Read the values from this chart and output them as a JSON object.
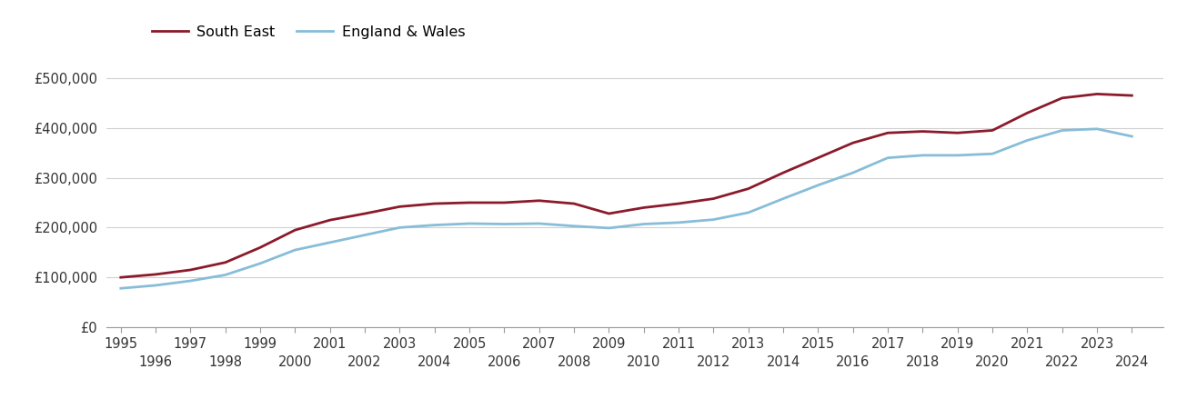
{
  "south_east": {
    "years": [
      1995,
      1996,
      1997,
      1998,
      1999,
      2000,
      2001,
      2002,
      2003,
      2004,
      2005,
      2006,
      2007,
      2008,
      2009,
      2010,
      2011,
      2012,
      2013,
      2014,
      2015,
      2016,
      2017,
      2018,
      2019,
      2020,
      2021,
      2022,
      2023,
      2024
    ],
    "values": [
      100000,
      106000,
      115000,
      130000,
      160000,
      195000,
      215000,
      228000,
      242000,
      248000,
      250000,
      250000,
      254000,
      248000,
      228000,
      240000,
      248000,
      258000,
      278000,
      310000,
      340000,
      370000,
      390000,
      393000,
      390000,
      395000,
      430000,
      460000,
      468000,
      465000
    ]
  },
  "england_wales": {
    "years": [
      1995,
      1996,
      1997,
      1998,
      1999,
      2000,
      2001,
      2002,
      2003,
      2004,
      2005,
      2006,
      2007,
      2008,
      2009,
      2010,
      2011,
      2012,
      2013,
      2014,
      2015,
      2016,
      2017,
      2018,
      2019,
      2020,
      2021,
      2022,
      2023,
      2024
    ],
    "values": [
      78000,
      84000,
      93000,
      105000,
      128000,
      155000,
      170000,
      185000,
      200000,
      205000,
      208000,
      207000,
      208000,
      203000,
      199000,
      207000,
      210000,
      216000,
      230000,
      258000,
      285000,
      310000,
      340000,
      345000,
      345000,
      348000,
      375000,
      395000,
      398000,
      383000
    ]
  },
  "south_east_color": "#8b1a2b",
  "england_wales_color": "#87bdd8",
  "south_east_label": "South East",
  "england_wales_label": "England & Wales",
  "ylim": [
    0,
    550000
  ],
  "yticks": [
    0,
    100000,
    200000,
    300000,
    400000,
    500000
  ],
  "ytick_labels": [
    "£0",
    "£100,000",
    "£200,000",
    "£300,000",
    "£400,000",
    "£500,000"
  ],
  "background_color": "#ffffff",
  "grid_color": "#d0d0d0",
  "line_width": 2.0,
  "tick_fontsize": 10.5,
  "legend_fontsize": 11.5
}
